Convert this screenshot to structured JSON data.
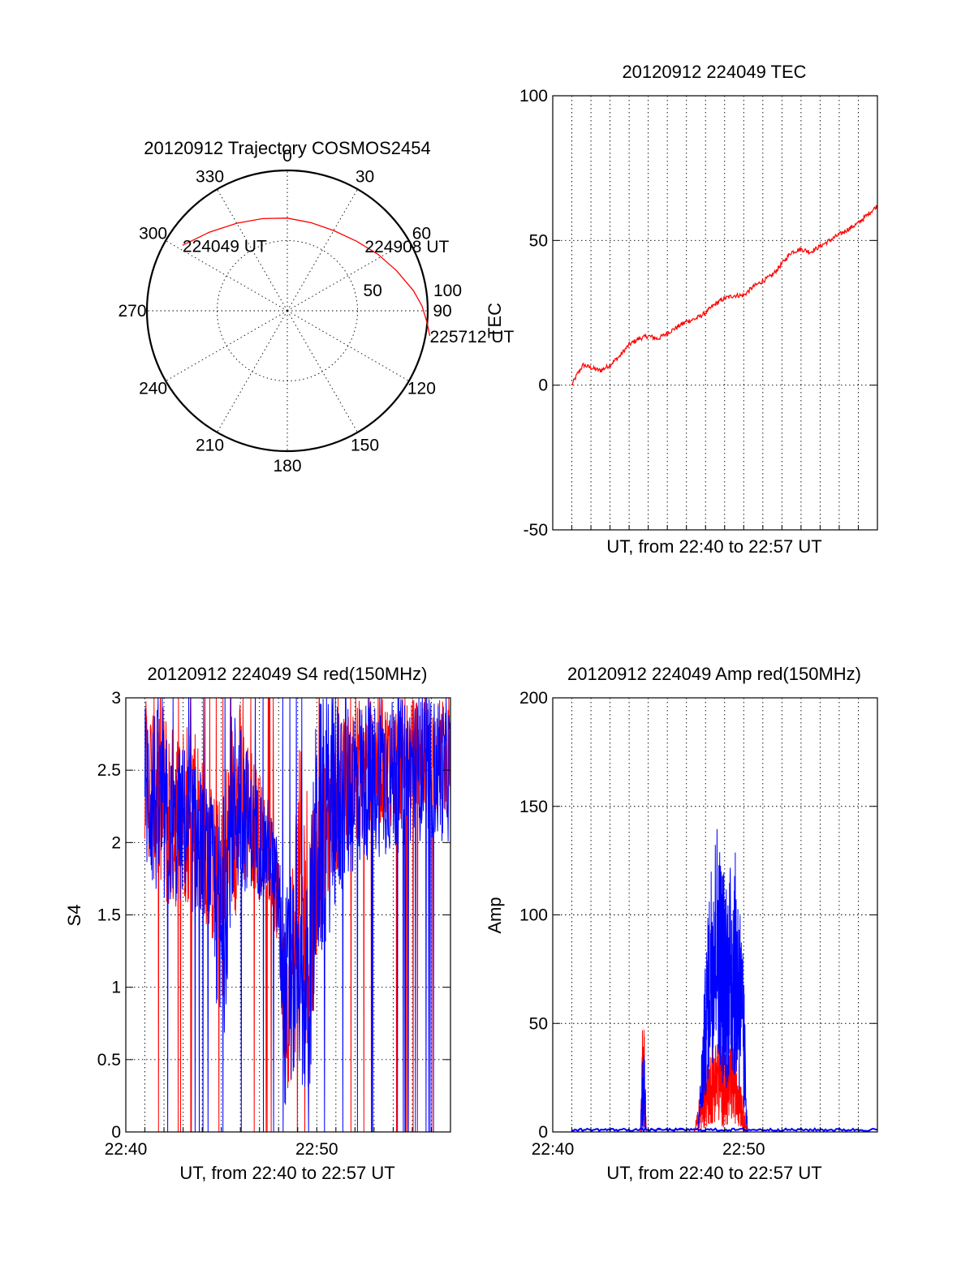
{
  "colors": {
    "red": "#ff0000",
    "blue": "#0000ff",
    "axis": "#000000",
    "background": "#ffffff"
  },
  "chart_data": [
    {
      "id": "trajectory",
      "type": "scatter",
      "subtype": "polar",
      "title": "20120912 Trajectory COSMOS2454",
      "azimuth_labels": [
        "0",
        "30",
        "60",
        "90",
        "120",
        "150",
        "180",
        "210",
        "240",
        "270",
        "300",
        "330"
      ],
      "zenith_ring_labels": [
        "50",
        "100"
      ],
      "elevation_rings": [
        0,
        50,
        100
      ],
      "grid": true,
      "series": [
        {
          "color": "#ff0000",
          "points": [
            {
              "az": -58,
              "r": 88
            },
            {
              "az": -45,
              "r": 79
            },
            {
              "az": -30,
              "r": 72
            },
            {
              "az": -15,
              "r": 68
            },
            {
              "az": 0,
              "r": 66
            },
            {
              "az": 15,
              "r": 65
            },
            {
              "az": 30,
              "r": 66
            },
            {
              "az": 45,
              "r": 70
            },
            {
              "az": 58,
              "r": 76
            },
            {
              "az": 70,
              "r": 83
            },
            {
              "az": 81,
              "r": 91
            },
            {
              "az": 88,
              "r": 96
            },
            {
              "az": 95,
              "r": 100
            },
            {
              "az": 100,
              "r": 103
            }
          ]
        }
      ],
      "annotations": [
        {
          "text": "224049 UT",
          "az": -58,
          "r": 88
        },
        {
          "text": "224908 UT",
          "az": 50,
          "r": 72
        },
        {
          "text": "225712 UT",
          "az": 100,
          "r": 103
        }
      ]
    },
    {
      "id": "tec",
      "type": "line",
      "title": "20120912 224049 TEC",
      "xlabel": "UT, from 22:40 to 22:57 UT",
      "ylabel": "TEC",
      "x_unit": "minutes after 22:40",
      "xlim": [
        0,
        17
      ],
      "ylim": [
        -50,
        100
      ],
      "yticks": [
        "100",
        "50",
        "0",
        "-50"
      ],
      "grid": true,
      "series": [
        {
          "color": "#ff0000",
          "x": [
            1,
            1.3,
            1.6,
            2.0,
            2.5,
            3.0,
            3.5,
            4.0,
            4.5,
            5.0,
            5.5,
            6.0,
            6.5,
            7.0,
            7.5,
            8.0,
            8.5,
            9.0,
            9.5,
            10.0,
            10.5,
            11.0,
            11.5,
            12.0,
            12.5,
            13.0,
            13.5,
            14.0,
            14.5,
            15.0,
            15.5,
            16.0,
            16.5,
            17.0
          ],
          "y": [
            0,
            4,
            7,
            6,
            5,
            7,
            10,
            14,
            16,
            17,
            16,
            18,
            20,
            22,
            23,
            25,
            28,
            30,
            31,
            31,
            34,
            36,
            38,
            42,
            46,
            47,
            46,
            48,
            50,
            52,
            54,
            56,
            59,
            62
          ]
        }
      ]
    },
    {
      "id": "s4",
      "type": "line",
      "title": "20120912 224049 S4 red(150MHz)",
      "xlabel": "UT, from 22:40 to 22:57 UT",
      "ylabel": "S4",
      "x_unit": "minutes after 22:40",
      "xlim": [
        0,
        17
      ],
      "ylim": [
        0,
        3
      ],
      "xticks": [
        {
          "at": 0,
          "label": "22:40"
        },
        {
          "at": 10,
          "label": "22:50"
        }
      ],
      "yticks": [
        "3",
        "2.5",
        "2",
        "1.5",
        "1",
        "0.5",
        "0"
      ],
      "grid": true,
      "series": [
        {
          "color": "#ff0000",
          "envelope_x": [
            1.0,
            1.5,
            2.0,
            2.5,
            3.0,
            3.5,
            4.0,
            4.5,
            5.0,
            5.5,
            6.0,
            6.5,
            7.0,
            7.5,
            8.0,
            8.3,
            8.6,
            9.0,
            9.3,
            9.6,
            10.0,
            10.5,
            11.0,
            12.0,
            13.0,
            14.0,
            15.0,
            16.0,
            17.0
          ],
          "upper": [
            3.0,
            3.0,
            3.0,
            2.8,
            2.9,
            3.0,
            2.6,
            2.4,
            2.3,
            2.9,
            3.0,
            2.7,
            2.5,
            2.2,
            1.9,
            1.5,
            1.6,
            2.7,
            2.6,
            2.5,
            2.4,
            2.6,
            2.8,
            3.0,
            3.0,
            3.0,
            3.0,
            3.0,
            3.0
          ],
          "lower": [
            2.0,
            1.7,
            1.5,
            1.5,
            1.6,
            1.5,
            1.5,
            1.3,
            0.8,
            1.4,
            1.6,
            1.7,
            1.6,
            1.6,
            1.2,
            0.3,
            0.3,
            0.6,
            0.3,
            0.3,
            1.2,
            1.5,
            1.8,
            2.0,
            2.1,
            2.1,
            2.2,
            2.2,
            2.2
          ]
        },
        {
          "color": "#0000ff",
          "envelope_x": [
            1.0,
            1.5,
            2.0,
            2.5,
            3.0,
            3.5,
            4.0,
            4.5,
            5.0,
            5.5,
            6.0,
            6.5,
            7.0,
            7.5,
            8.0,
            8.3,
            8.6,
            9.0,
            9.3,
            9.6,
            10.0,
            10.5,
            11.0,
            12.0,
            13.0,
            14.0,
            15.0,
            16.0,
            17.0
          ],
          "upper": [
            3.0,
            3.0,
            2.8,
            2.6,
            2.7,
            2.6,
            2.5,
            2.3,
            2.2,
            2.9,
            3.0,
            2.5,
            2.4,
            2.3,
            2.0,
            1.6,
            1.9,
            1.5,
            1.5,
            1.9,
            3.0,
            3.0,
            3.0,
            3.0,
            3.0,
            3.0,
            3.0,
            3.0,
            3.0
          ],
          "lower": [
            1.8,
            1.6,
            1.5,
            1.5,
            1.6,
            1.5,
            1.5,
            1.4,
            0.25,
            1.5,
            1.6,
            1.7,
            1.6,
            1.6,
            1.2,
            0.13,
            0.14,
            0.55,
            0.2,
            0.2,
            1.0,
            1.3,
            1.5,
            1.8,
            1.9,
            1.9,
            2.0,
            2.0,
            2.0
          ]
        }
      ]
    },
    {
      "id": "amp",
      "type": "line",
      "title": "20120912 224049 Amp red(150MHz)",
      "xlabel": "UT, from 22:40 to 22:57 UT",
      "ylabel": "Amp",
      "x_unit": "minutes after 22:40",
      "xlim": [
        0,
        17
      ],
      "ylim": [
        0,
        200
      ],
      "xticks": [
        {
          "at": 0,
          "label": "22:40"
        },
        {
          "at": 10,
          "label": "22:50"
        }
      ],
      "yticks": [
        "200",
        "150",
        "100",
        "50",
        "0"
      ],
      "grid": true,
      "series": [
        {
          "color": "#ff0000",
          "envelope_x": [
            4.6,
            4.7,
            4.75,
            4.8,
            4.9,
            7.4,
            7.6,
            7.8,
            8.0,
            8.3,
            8.6,
            8.9,
            9.2,
            9.5,
            9.8,
            10.0,
            10.2
          ],
          "upper": [
            0,
            50,
            54,
            45,
            0,
            0,
            12,
            22,
            30,
            40,
            45,
            40,
            35,
            48,
            30,
            15,
            0
          ],
          "lower": [
            0,
            0,
            0,
            0,
            0,
            0,
            0,
            0,
            2,
            3,
            5,
            2,
            2,
            4,
            2,
            0,
            0
          ]
        },
        {
          "color": "#0000ff",
          "baseline": 1,
          "envelope_x": [
            4.6,
            4.7,
            4.75,
            4.8,
            4.9,
            7.6,
            7.8,
            8.0,
            8.3,
            8.6,
            8.9,
            9.2,
            9.5,
            9.8,
            10.0,
            10.2
          ],
          "upper": [
            1,
            40,
            42,
            38,
            1,
            1,
            40,
            80,
            130,
            145,
            125,
            120,
            134,
            110,
            75,
            1
          ],
          "lower": [
            1,
            1,
            1,
            1,
            1,
            1,
            5,
            15,
            30,
            40,
            20,
            20,
            25,
            15,
            5,
            1
          ]
        }
      ]
    }
  ]
}
